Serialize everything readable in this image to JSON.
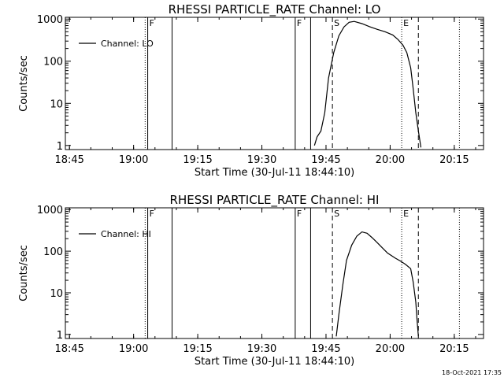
{
  "footer": {
    "timestamp": "18-Oct-2021 17:35"
  },
  "chart_data": [
    {
      "type": "line",
      "title": "RHESSI PARTICLE_RATE Channel: LO",
      "xlabel": "Start Time (30-Jul-11 18:44:10)",
      "ylabel": "Counts/sec",
      "yscale": "log",
      "xlim": [
        18.734,
        20.364
      ],
      "ylim": [
        0.8,
        1100
      ],
      "x_ticks": [
        {
          "value": 18.75,
          "label": "18:45"
        },
        {
          "value": 19.0,
          "label": "19:00"
        },
        {
          "value": 19.25,
          "label": "19:15"
        },
        {
          "value": 19.5,
          "label": "19:30"
        },
        {
          "value": 19.75,
          "label": "19:45"
        },
        {
          "value": 20.0,
          "label": "20:00"
        },
        {
          "value": 20.25,
          "label": "20:15"
        }
      ],
      "y_ticks": [
        {
          "value": 1,
          "label": "1"
        },
        {
          "value": 10,
          "label": "10"
        },
        {
          "value": 100,
          "label": "100"
        },
        {
          "value": 1000,
          "label": "1000"
        }
      ],
      "legend": {
        "position": "top-left",
        "entries": [
          "Channel: LO"
        ]
      },
      "series": [
        {
          "name": "Channel: LO",
          "x": [
            19.705,
            19.715,
            19.73,
            19.745,
            19.76,
            19.78,
            19.8,
            19.82,
            19.84,
            19.86,
            19.89,
            19.92,
            19.95,
            19.98,
            20.01,
            20.03,
            20.05,
            20.065,
            20.08,
            20.09,
            20.1,
            20.11,
            20.12
          ],
          "y": [
            1.0,
            1.6,
            2.2,
            6,
            40,
            160,
            400,
            650,
            840,
            880,
            780,
            660,
            570,
            500,
            420,
            330,
            240,
            160,
            70,
            22,
            6,
            2.2,
            0.9
          ]
        }
      ],
      "vlines": [
        {
          "x": 19.045,
          "style": "dotted",
          "label": ""
        },
        {
          "x": 19.055,
          "style": "solid",
          "label": "F"
        },
        {
          "x": 19.15,
          "style": "solid",
          "label": ""
        },
        {
          "x": 19.63,
          "style": "solid",
          "label": "F"
        },
        {
          "x": 19.69,
          "style": "solid",
          "label": ""
        },
        {
          "x": 19.775,
          "style": "dashed",
          "label": "S"
        },
        {
          "x": 20.045,
          "style": "dotted",
          "label": "E"
        },
        {
          "x": 20.11,
          "style": "dashed",
          "label": ""
        },
        {
          "x": 20.27,
          "style": "dotted",
          "label": ""
        }
      ]
    },
    {
      "type": "line",
      "title": "RHESSI PARTICLE_RATE Channel: HI",
      "xlabel": "Start Time (30-Jul-11 18:44:10)",
      "ylabel": "Counts/sec",
      "yscale": "log",
      "xlim": [
        18.734,
        20.364
      ],
      "ylim": [
        0.8,
        1100
      ],
      "x_ticks": [
        {
          "value": 18.75,
          "label": "18:45"
        },
        {
          "value": 19.0,
          "label": "19:00"
        },
        {
          "value": 19.25,
          "label": "19:15"
        },
        {
          "value": 19.5,
          "label": "19:30"
        },
        {
          "value": 19.75,
          "label": "19:45"
        },
        {
          "value": 20.0,
          "label": "20:00"
        },
        {
          "value": 20.25,
          "label": "20:15"
        }
      ],
      "y_ticks": [
        {
          "value": 1,
          "label": "1"
        },
        {
          "value": 10,
          "label": "10"
        },
        {
          "value": 100,
          "label": "100"
        },
        {
          "value": 1000,
          "label": "1000"
        }
      ],
      "legend": {
        "position": "top-left",
        "entries": [
          "Channel: HI"
        ]
      },
      "series": [
        {
          "name": "Channel: HI",
          "x": [
            19.79,
            19.8,
            19.815,
            19.83,
            19.85,
            19.87,
            19.89,
            19.91,
            19.93,
            19.95,
            19.97,
            19.99,
            20.02,
            20.04,
            20.06,
            20.08,
            20.09,
            20.1,
            20.105,
            20.11
          ],
          "y": [
            0.9,
            3,
            15,
            60,
            140,
            230,
            290,
            270,
            210,
            160,
            120,
            90,
            68,
            58,
            48,
            38,
            18,
            6,
            2.2,
            0.9
          ]
        }
      ],
      "vlines": [
        {
          "x": 19.045,
          "style": "dotted",
          "label": ""
        },
        {
          "x": 19.055,
          "style": "solid",
          "label": "F"
        },
        {
          "x": 19.15,
          "style": "solid",
          "label": ""
        },
        {
          "x": 19.63,
          "style": "solid",
          "label": "F"
        },
        {
          "x": 19.69,
          "style": "solid",
          "label": ""
        },
        {
          "x": 19.775,
          "style": "dashed",
          "label": "S"
        },
        {
          "x": 20.045,
          "style": "dotted",
          "label": "E"
        },
        {
          "x": 20.11,
          "style": "dashed",
          "label": ""
        },
        {
          "x": 20.27,
          "style": "dotted",
          "label": ""
        }
      ]
    }
  ]
}
